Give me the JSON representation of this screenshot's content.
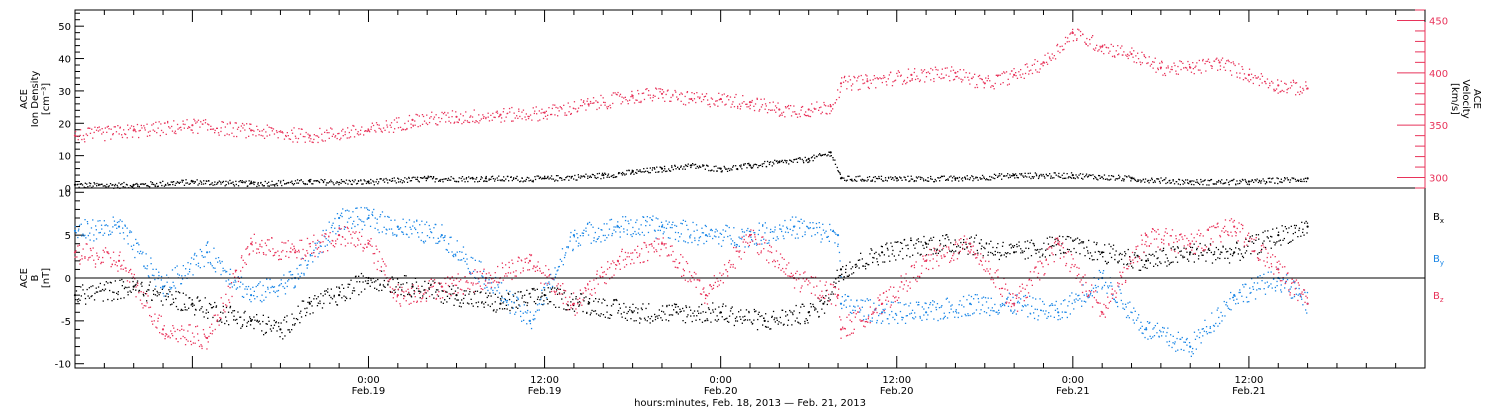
{
  "colors": {
    "black": "#000000",
    "red": "#e8335a",
    "blue": "#1a86e6"
  },
  "xaxis": {
    "title": "hours:minutes, Feb. 18, 2013 — Feb. 21, 2013",
    "range_hours": [
      -20,
      72
    ],
    "ticks": [
      {
        "h": 0,
        "time": "0:00",
        "date": "Feb.19"
      },
      {
        "h": 12,
        "time": "12:00",
        "date": "Feb.19"
      },
      {
        "h": 24,
        "time": "0:00",
        "date": "Feb.20"
      },
      {
        "h": 36,
        "time": "12:00",
        "date": "Feb.20"
      },
      {
        "h": 48,
        "time": "0:00",
        "date": "Feb.21"
      },
      {
        "h": 60,
        "time": "12:00",
        "date": "Feb.21"
      }
    ]
  },
  "panel1": {
    "left_label": [
      "ACE",
      "Ion Density",
      "[cm⁻³]"
    ],
    "right_label": [
      "ACE",
      "Velocity",
      "[km/s]"
    ],
    "left_range": [
      0,
      55
    ],
    "left_ticks": [
      0,
      10,
      20,
      30,
      40,
      50
    ],
    "right_range": [
      290,
      460
    ],
    "right_ticks": [
      300,
      350,
      400,
      450
    ]
  },
  "panel2": {
    "left_label": [
      "ACE",
      "B",
      "[nT]"
    ],
    "range": [
      -10.5,
      10.5
    ],
    "ticks": [
      -10,
      -5,
      0,
      5,
      10
    ],
    "legend": [
      {
        "label": "Bx",
        "base": "B",
        "sub": "x",
        "color": "#000000"
      },
      {
        "label": "By",
        "base": "B",
        "sub": "y",
        "color": "#1a86e6"
      },
      {
        "label": "Bz",
        "base": "B",
        "sub": "z",
        "color": "#e8335a"
      }
    ]
  },
  "chart_data": [
    {
      "type": "scatter",
      "title": "",
      "xlabel": "hours:minutes, Feb. 18, 2013 — Feb. 21, 2013",
      "ylabel": "ACE Ion Density [cm⁻³]",
      "ylim": [
        0,
        55
      ],
      "series": [
        {
          "name": "Ion Density",
          "color": "#000000",
          "x": [
            -20,
            -16,
            -12,
            -8,
            -4,
            0,
            4,
            8,
            12,
            16,
            18,
            20,
            22,
            24,
            26,
            28,
            30,
            31.5,
            32.2,
            36,
            40,
            44,
            48,
            52,
            56,
            60,
            64
          ],
          "y": [
            1,
            1,
            2,
            1.5,
            2,
            2,
            3,
            3,
            3,
            4,
            5,
            6,
            7,
            6,
            7,
            8,
            9,
            11,
            3,
            3,
            3,
            4,
            4,
            3,
            2,
            2,
            3
          ]
        },
        {
          "name": "Velocity",
          "color": "#e8335a",
          "x": [
            -20,
            -16,
            -12,
            -8,
            -4,
            0,
            3,
            6,
            9,
            12,
            15,
            18,
            20,
            22,
            24,
            26,
            28,
            30,
            31.5,
            32.2,
            34,
            37,
            40,
            42,
            44,
            46,
            48,
            50,
            52,
            54,
            56,
            58,
            60,
            62,
            64
          ],
          "y": [
            340,
            345,
            350,
            345,
            340,
            345,
            355,
            358,
            360,
            362,
            370,
            378,
            380,
            375,
            375,
            372,
            365,
            365,
            368,
            390,
            392,
            398,
            400,
            390,
            398,
            410,
            438,
            425,
            418,
            405,
            405,
            410,
            398,
            388,
            385
          ]
        }
      ]
    },
    {
      "type": "scatter",
      "title": "",
      "xlabel": "hours:minutes, Feb. 18, 2013 — Feb. 21, 2013",
      "ylabel": "ACE B [nT]",
      "ylim": [
        -10.5,
        10.5
      ],
      "series": [
        {
          "name": "Bx",
          "color": "#000000",
          "x": [
            -20,
            -16,
            -12,
            -8,
            -6,
            -4,
            -2,
            0,
            3,
            6,
            9,
            12,
            15,
            18,
            21,
            24,
            27,
            30,
            31,
            32.2,
            35,
            38,
            41,
            44,
            47,
            50,
            53,
            56,
            59,
            62,
            64
          ],
          "y": [
            -2,
            -1,
            -3,
            -5,
            -6,
            -3,
            -2,
            0,
            -1,
            -2,
            -3,
            -2,
            -3,
            -4,
            -4,
            -4,
            -5,
            -4,
            -3,
            1,
            3,
            4,
            4,
            3,
            4,
            3,
            2,
            3,
            3,
            5,
            6
          ]
        },
        {
          "name": "By",
          "color": "#1a86e6",
          "x": [
            -20,
            -17,
            -14,
            -11,
            -8,
            -5,
            -2,
            0,
            2,
            5,
            8,
            11,
            14,
            17,
            20,
            23,
            26,
            29,
            32,
            32.2,
            35,
            38,
            41,
            44,
            47,
            50,
            53,
            56,
            59,
            62,
            64
          ],
          "y": [
            5.5,
            6,
            -1,
            3,
            -2,
            0,
            7,
            7,
            6,
            5,
            0,
            -5,
            5,
            6,
            6,
            5,
            5,
            6,
            5,
            -3,
            -4,
            -4,
            -3,
            -3,
            -4,
            0,
            -6,
            -8,
            -2,
            0,
            -3
          ]
        },
        {
          "name": "Bz",
          "color": "#e8335a",
          "x": [
            -20,
            -17,
            -14,
            -11,
            -8,
            -5,
            -2,
            0,
            2,
            5,
            8,
            11,
            14,
            17,
            20,
            23,
            26,
            29,
            32,
            32.2,
            35,
            38,
            41,
            44,
            47,
            50,
            53,
            56,
            59,
            62,
            64
          ],
          "y": [
            3,
            2,
            -6,
            -7,
            4,
            3,
            5,
            4,
            -2,
            -1,
            0,
            2,
            -3,
            2,
            4,
            -2,
            5,
            0,
            -2,
            -6,
            -3,
            2,
            4,
            -3,
            4,
            -4,
            5,
            4,
            6,
            1,
            -3
          ]
        }
      ]
    }
  ]
}
